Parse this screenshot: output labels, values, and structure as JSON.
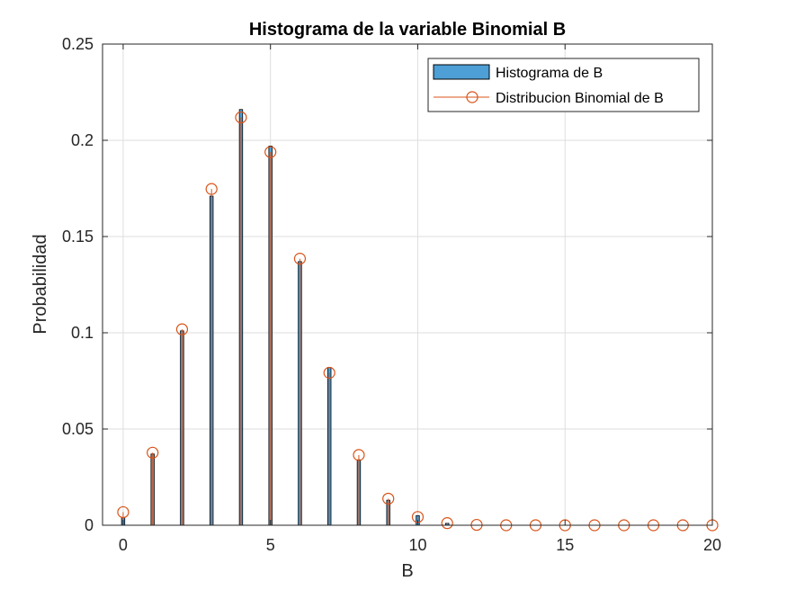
{
  "chart_data": {
    "type": "bar",
    "title": "Histograma de la variable Binomial B",
    "xlabel": "B",
    "ylabel": "Probabilidad",
    "xlim": [
      -0.7,
      20
    ],
    "ylim": [
      0,
      0.25
    ],
    "xticks": [
      0,
      5,
      10,
      15,
      20
    ],
    "xtick_labels": [
      "0",
      "5",
      "10",
      "15",
      "20"
    ],
    "yticks": [
      0,
      0.05,
      0.1,
      0.15,
      0.2,
      0.25
    ],
    "ytick_labels": [
      "0",
      "0.05",
      "0.1",
      "0.15",
      "0.2",
      "0.25"
    ],
    "grid": true,
    "legend_position": "top-right",
    "colors": {
      "bar_fill": "#4d9fd6",
      "bar_edge": "#000000",
      "line": "#d95319",
      "grid": "#dedede",
      "axes": "#262626"
    },
    "series": [
      {
        "name": "Histograma de B",
        "kind": "bar",
        "x": [
          0,
          1,
          2,
          3,
          4,
          5,
          6,
          7,
          8,
          9,
          10,
          11
        ],
        "values": [
          0.004,
          0.037,
          0.101,
          0.171,
          0.216,
          0.197,
          0.137,
          0.082,
          0.034,
          0.013,
          0.005,
          0.001
        ]
      },
      {
        "name": "Distribucion Binomial de B",
        "kind": "line",
        "marker": "circle",
        "x": [
          0,
          1,
          2,
          3,
          4,
          5,
          6,
          7,
          8,
          9,
          10,
          11,
          12,
          13,
          14,
          15,
          16,
          17,
          18,
          19,
          20
        ],
        "values": [
          0.0068,
          0.0377,
          0.1018,
          0.1747,
          0.2119,
          0.1939,
          0.1385,
          0.0792,
          0.0365,
          0.0138,
          0.0043,
          0.0011,
          0.0002,
          0,
          0,
          0,
          0,
          0,
          0,
          0,
          0
        ]
      }
    ]
  }
}
